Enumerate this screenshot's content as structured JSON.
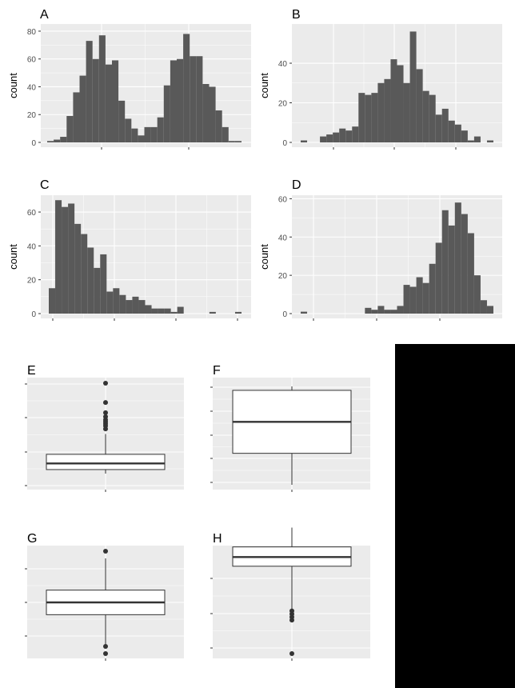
{
  "colors": {
    "panel_bg": "#EBEBEB",
    "grid_major": "#FFFFFF",
    "bar_fill": "#595959",
    "box_line": "#333333",
    "tick_text": "#4D4D4D",
    "label_text": "#000000",
    "redaction": "#000000"
  },
  "chart_data": [
    {
      "panel": "A",
      "type": "bar",
      "ylabel": "count",
      "ylim": [
        0,
        84
      ],
      "yticks": [
        "0",
        "20",
        "40",
        "60",
        "80"
      ],
      "values": [
        1,
        2,
        4,
        19,
        36,
        48,
        73,
        60,
        77,
        56,
        59,
        30,
        17,
        10,
        5,
        11,
        11,
        18,
        41,
        59,
        60,
        78,
        62,
        62,
        42,
        40,
        23,
        11,
        1,
        1
      ]
    },
    {
      "panel": "B",
      "type": "bar",
      "ylabel": "count",
      "ylim": [
        0,
        59
      ],
      "yticks": [
        "0",
        "20",
        "40"
      ],
      "values": [
        1,
        0,
        0,
        3,
        4,
        5,
        7,
        6,
        8,
        25,
        24,
        25,
        30,
        32,
        42,
        39,
        30,
        56,
        37,
        26,
        24,
        14,
        17,
        11,
        9,
        6,
        1,
        3,
        0,
        1
      ]
    },
    {
      "panel": "C",
      "type": "bar",
      "ylabel": "count",
      "ylim": [
        0,
        69
      ],
      "yticks": [
        "0",
        "20",
        "40",
        "60"
      ],
      "values": [
        15,
        67,
        63,
        65,
        53,
        47,
        39,
        27,
        35,
        13,
        15,
        11,
        8,
        10,
        8,
        5,
        3,
        3,
        3,
        1,
        4,
        0,
        0,
        0,
        0,
        1,
        0,
        0,
        0,
        1
      ]
    },
    {
      "panel": "D",
      "type": "bar",
      "ylabel": "count",
      "ylim": [
        0,
        61
      ],
      "yticks": [
        "0",
        "20",
        "40",
        "60"
      ],
      "values": [
        1,
        0,
        0,
        0,
        0,
        0,
        0,
        0,
        0,
        0,
        3,
        2,
        4,
        2,
        2,
        4,
        15,
        14,
        19,
        16,
        26,
        37,
        54,
        46,
        58,
        52,
        42,
        20,
        7,
        4
      ]
    },
    {
      "panel": "E",
      "type": "box",
      "ylim": [
        0,
        100
      ],
      "box": {
        "lower_whisker": 11,
        "q1": 15,
        "median": 21,
        "q3": 30,
        "upper_whisker": 50
      },
      "outliers": [
        55,
        58,
        60,
        62,
        64,
        67,
        71,
        81,
        100
      ]
    },
    {
      "panel": "F",
      "type": "box",
      "ylim": [
        0,
        100
      ],
      "box": {
        "lower_whisker": 0,
        "q1": 32,
        "median": 64,
        "q3": 96,
        "upper_whisker": 100
      },
      "outliers": []
    },
    {
      "panel": "G",
      "type": "box",
      "ylim": [
        0,
        100
      ],
      "box": {
        "lower_whisker": 7,
        "q1": 38,
        "median": 50,
        "q3": 62,
        "upper_whisker": 93
      },
      "outliers": [
        0,
        7,
        100
      ]
    },
    {
      "panel": "H",
      "type": "box",
      "ylim": [
        0,
        100
      ],
      "box": {
        "lower_whisker": 38,
        "q1": 86,
        "median": 95,
        "q3": 105,
        "upper_whisker": 124
      },
      "outliers": [
        0,
        33,
        36,
        39,
        42
      ]
    }
  ]
}
